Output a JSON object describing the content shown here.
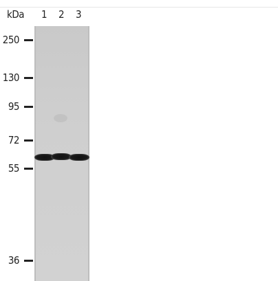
{
  "blot": {
    "unit_label": "kDa",
    "lanes": [
      {
        "label": "1"
      },
      {
        "label": "2"
      },
      {
        "label": "3"
      }
    ],
    "markers": [
      {
        "label": "250"
      },
      {
        "label": "130"
      },
      {
        "label": "95"
      },
      {
        "label": "72"
      },
      {
        "label": "55"
      },
      {
        "label": "36"
      }
    ]
  }
}
